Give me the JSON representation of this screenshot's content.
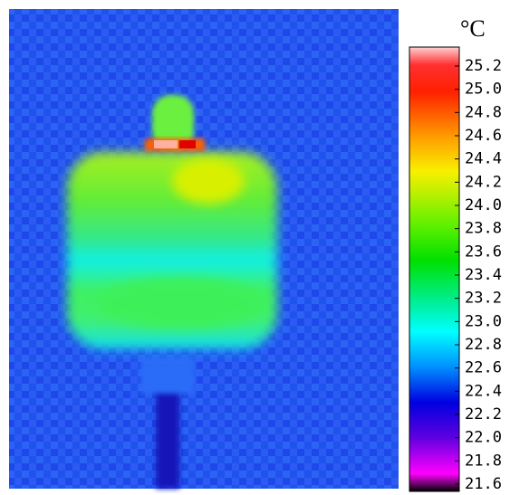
{
  "colorbar": {
    "unit": "°C",
    "ticks": [
      "25.2",
      "25.0",
      "24.8",
      "24.6",
      "24.4",
      "24.2",
      "24.0",
      "23.8",
      "23.6",
      "23.4",
      "23.2",
      "23.0",
      "22.8",
      "22.6",
      "22.4",
      "22.2",
      "22.0",
      "21.8",
      "21.6"
    ]
  }
}
